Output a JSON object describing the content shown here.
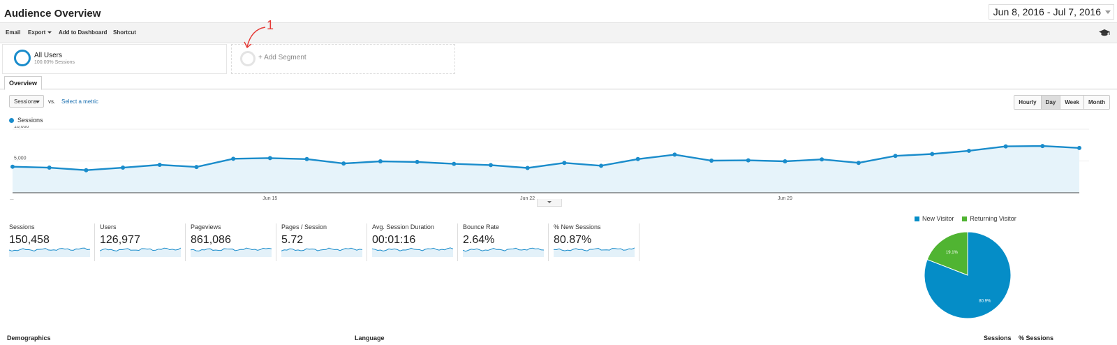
{
  "page": {
    "title": "Audience Overview",
    "date_range": {
      "start": "Jun 8, 2016",
      "sep": "-",
      "end": "Jul 7, 2016"
    }
  },
  "toolbar": {
    "email": "Email",
    "export": "Export",
    "add_to_dashboard": "Add to Dashboard",
    "shortcut": "Shortcut",
    "help_icon": "graduation-cap-icon"
  },
  "segments": {
    "active": {
      "name": "All Users",
      "sub": "100.00% Sessions"
    },
    "add_label": "+ Add Segment"
  },
  "annotation": {
    "number": "1",
    "color": "#e53935"
  },
  "tabs": [
    {
      "label": "Overview"
    }
  ],
  "chart_controls": {
    "metric": "Sessions",
    "vs": "vs.",
    "select_metric": "Select a metric",
    "granularity": [
      "Hourly",
      "Day",
      "Week",
      "Month"
    ],
    "granularity_active": "Day"
  },
  "chart_data": {
    "type": "area",
    "series": [
      {
        "name": "Sessions",
        "color": "#1a8ccb",
        "values": [
          4100,
          3950,
          3550,
          3950,
          4400,
          4050,
          5350,
          5450,
          5300,
          4600,
          4950,
          4850,
          4550,
          4350,
          3900,
          4700,
          4250,
          5300,
          6000,
          5050,
          5100,
          4950,
          5250,
          4700,
          5800,
          6100,
          6600,
          7300,
          7350,
          7050
        ]
      }
    ],
    "x_labels": [
      {
        "index": 7,
        "label": "Jun 15"
      },
      {
        "index": 14,
        "label": "Jun 22"
      },
      {
        "index": 21,
        "label": "Jun 29"
      }
    ],
    "x_start_label": "...",
    "y_ticks": [
      {
        "value": 10000,
        "label": "10,000"
      },
      {
        "value": 5000,
        "label": "5,000"
      }
    ],
    "ylim": [
      0,
      10000
    ],
    "grid": true
  },
  "scorecards": [
    {
      "label": "Sessions",
      "value": "150,458"
    },
    {
      "label": "Users",
      "value": "126,977"
    },
    {
      "label": "Pageviews",
      "value": "861,086"
    },
    {
      "label": "Pages / Session",
      "value": "5.72"
    },
    {
      "label": "Avg. Session Duration",
      "value": "00:01:16"
    },
    {
      "label": "Bounce Rate",
      "value": "2.64%"
    },
    {
      "label": "% New Sessions",
      "value": "80.87%"
    }
  ],
  "pie": {
    "type": "pie",
    "legend": [
      "New Visitor",
      "Returning Visitor"
    ],
    "slices": [
      {
        "name": "New Visitor",
        "value": 80.9,
        "label": "80.9%",
        "color": "#058dc7"
      },
      {
        "name": "Returning Visitor",
        "value": 19.1,
        "label": "19.1%",
        "color": "#50b432"
      }
    ]
  },
  "bottom_headers": {
    "demographics": "Demographics",
    "language": "Language",
    "sessions": "Sessions",
    "pct_sessions": "% Sessions"
  }
}
